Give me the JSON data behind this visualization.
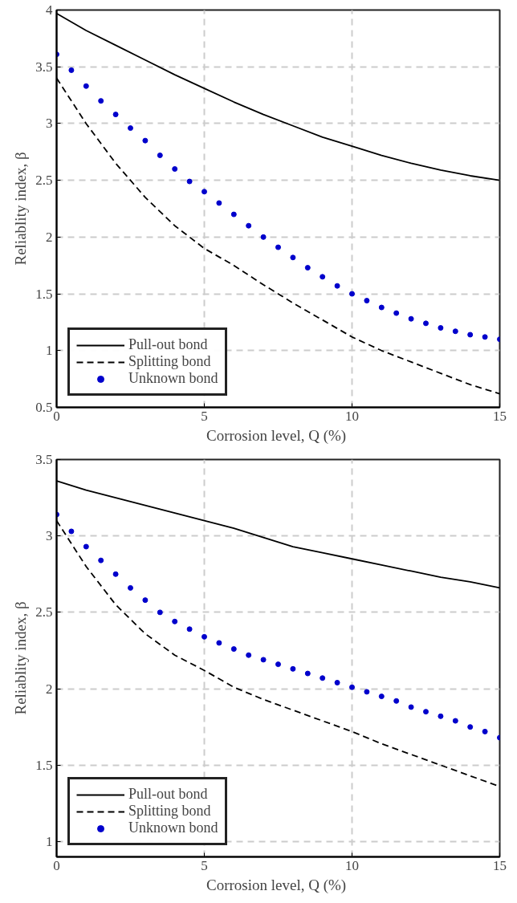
{
  "chart_data": [
    {
      "type": "line",
      "xlabel": "Corrosion level,  Q (%)",
      "ylabel": "Reliablity index, β",
      "xlim": [
        0,
        15
      ],
      "ylim": [
        0.5,
        4
      ],
      "xticks": [
        0,
        5,
        10,
        15
      ],
      "yticks": [
        0.5,
        1,
        1.5,
        2,
        2.5,
        3,
        3.5,
        4
      ],
      "grid": true,
      "legend": "bottom left",
      "series": [
        {
          "name": "Pull-out bond",
          "line_style": "solid",
          "color": "#000000",
          "x": [
            0,
            1,
            2,
            3,
            4,
            5,
            6,
            7,
            8,
            9,
            10,
            11,
            12,
            13,
            14,
            15
          ],
          "values": [
            3.97,
            3.82,
            3.69,
            3.56,
            3.43,
            3.31,
            3.19,
            3.08,
            2.98,
            2.88,
            2.8,
            2.72,
            2.65,
            2.59,
            2.54,
            2.5
          ]
        },
        {
          "name": "Splitting bond",
          "line_style": "dashed",
          "color": "#000000",
          "x": [
            0,
            1,
            2,
            3,
            4,
            5,
            6,
            7,
            8,
            9,
            10,
            11,
            12,
            13,
            14,
            15
          ],
          "values": [
            3.4,
            3.0,
            2.65,
            2.35,
            2.1,
            1.9,
            1.75,
            1.58,
            1.42,
            1.27,
            1.12,
            1.0,
            0.9,
            0.8,
            0.7,
            0.62
          ]
        },
        {
          "name": "Unknown bond",
          "type": "scatter",
          "marker": "circle",
          "color": "#0000cc",
          "x": [
            0,
            0.5,
            1,
            1.5,
            2,
            2.5,
            3,
            3.5,
            4,
            4.5,
            5,
            5.5,
            6,
            6.5,
            7,
            7.5,
            8,
            8.5,
            9,
            9.5,
            10,
            10.5,
            11,
            11.5,
            12,
            12.5,
            13,
            13.5,
            14,
            14.5,
            15
          ],
          "values": [
            3.61,
            3.47,
            3.33,
            3.2,
            3.08,
            2.96,
            2.85,
            2.72,
            2.6,
            2.49,
            2.4,
            2.3,
            2.2,
            2.1,
            2.0,
            1.91,
            1.82,
            1.73,
            1.65,
            1.57,
            1.5,
            1.44,
            1.38,
            1.33,
            1.28,
            1.24,
            1.2,
            1.17,
            1.14,
            1.12,
            1.1
          ]
        }
      ]
    },
    {
      "type": "line",
      "xlabel": "Corrosion level,  Q (%)",
      "ylabel": "Reliablity index, β",
      "xlim": [
        0,
        15
      ],
      "ylim": [
        0.9,
        3.5
      ],
      "xticks": [
        0,
        5,
        10,
        15
      ],
      "yticks": [
        1,
        1.5,
        2,
        2.5,
        3,
        3.5
      ],
      "grid": true,
      "legend": "bottom left",
      "series": [
        {
          "name": "Pull-out bond",
          "line_style": "solid",
          "color": "#000000",
          "x": [
            0,
            1,
            2,
            3,
            4,
            5,
            6,
            7,
            8,
            9,
            10,
            11,
            12,
            13,
            14,
            15
          ],
          "values": [
            3.36,
            3.3,
            3.25,
            3.2,
            3.15,
            3.1,
            3.05,
            2.99,
            2.93,
            2.89,
            2.85,
            2.81,
            2.77,
            2.73,
            2.7,
            2.66
          ]
        },
        {
          "name": "Splitting bond",
          "line_style": "dashed",
          "color": "#000000",
          "x": [
            0,
            1,
            2,
            3,
            4,
            5,
            6,
            7,
            8,
            9,
            10,
            11,
            12,
            13,
            14,
            15
          ],
          "values": [
            3.1,
            2.8,
            2.55,
            2.36,
            2.22,
            2.12,
            2.01,
            1.93,
            1.86,
            1.79,
            1.72,
            1.64,
            1.57,
            1.5,
            1.43,
            1.36
          ]
        },
        {
          "name": "Unknown bond",
          "type": "scatter",
          "marker": "circle",
          "color": "#0000cc",
          "x": [
            0,
            0.5,
            1,
            1.5,
            2,
            2.5,
            3,
            3.5,
            4,
            4.5,
            5,
            5.5,
            6,
            6.5,
            7,
            7.5,
            8,
            8.5,
            9,
            9.5,
            10,
            10.5,
            11,
            11.5,
            12,
            12.5,
            13,
            13.5,
            14,
            14.5,
            15
          ],
          "values": [
            3.14,
            3.03,
            2.93,
            2.84,
            2.75,
            2.66,
            2.58,
            2.5,
            2.44,
            2.39,
            2.34,
            2.3,
            2.26,
            2.22,
            2.19,
            2.16,
            2.13,
            2.1,
            2.07,
            2.04,
            2.01,
            1.98,
            1.95,
            1.92,
            1.88,
            1.85,
            1.82,
            1.79,
            1.75,
            1.72,
            1.68
          ]
        }
      ]
    }
  ]
}
